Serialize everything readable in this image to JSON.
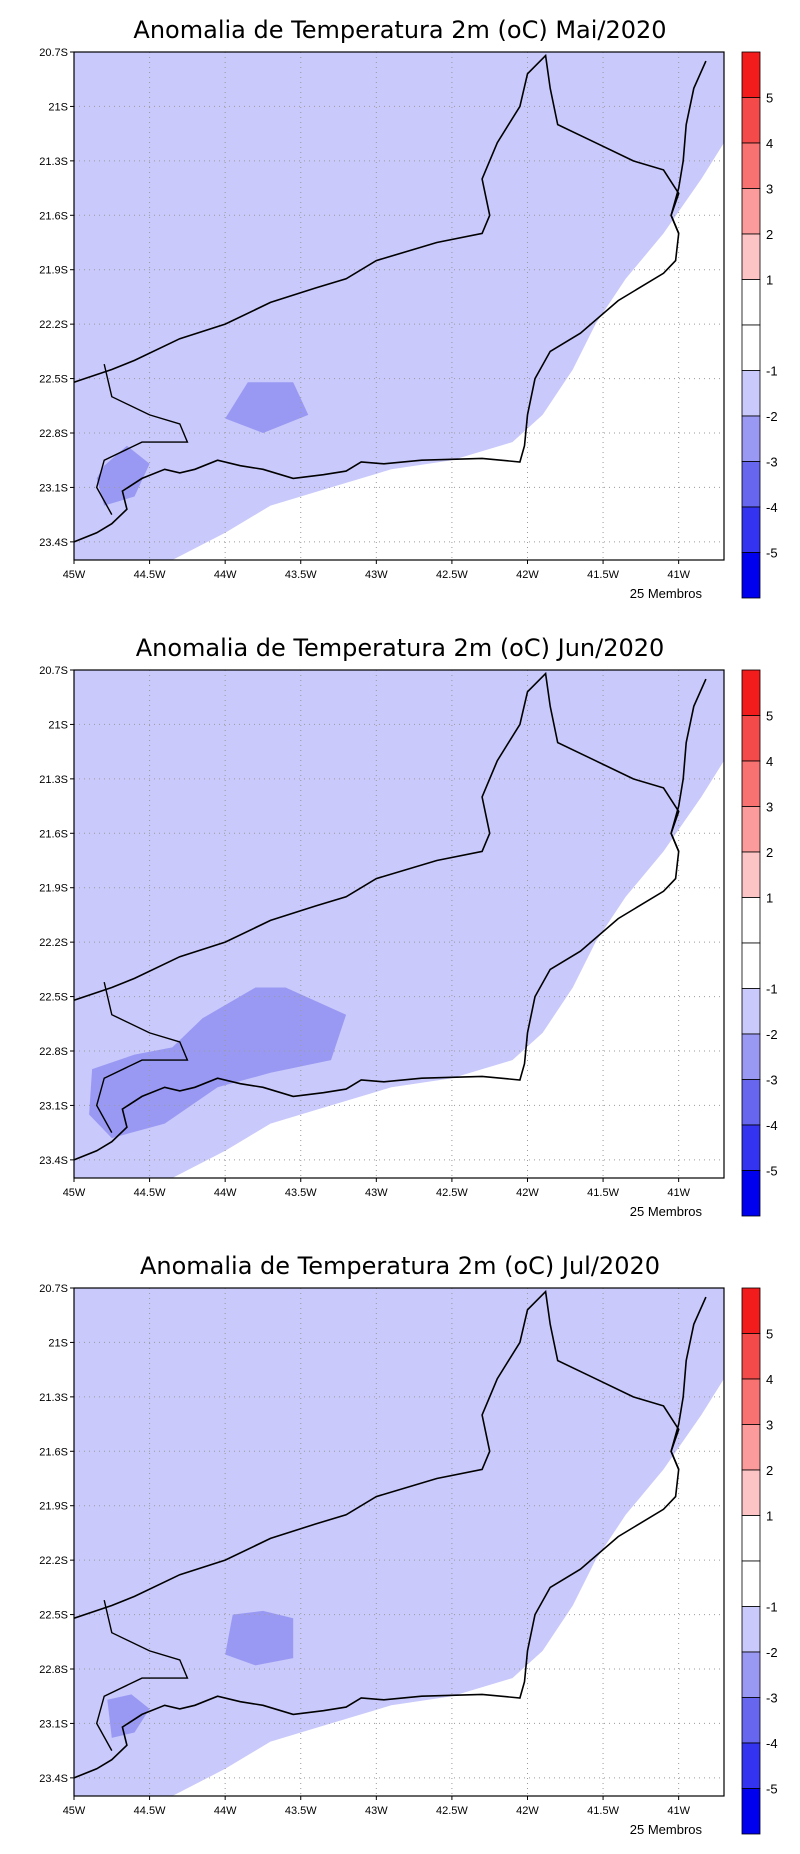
{
  "colors": {
    "neg1": "#ffffff",
    "neg2": "#c9c9fb",
    "neg3": "#9999f4",
    "neg4": "#6666ee",
    "neg5": "#3333f0",
    "neg6": "#0000ee",
    "pos1": "#ffffff",
    "pos2": "#fcc4c4",
    "pos3": "#fb9b9b",
    "pos4": "#f87272",
    "pos5": "#f54a4a",
    "pos6": "#f21c1c"
  },
  "panels": [
    {
      "title": "Anomalia de Temperatura 2m (oC) Mai/2020",
      "members": "25 Membros",
      "dark_patches": [
        {
          "label": "-3",
          "points": [
            [
              -43.85,
              22.52
            ],
            [
              -43.55,
              22.52
            ],
            [
              -43.45,
              22.7
            ],
            [
              -43.75,
              22.8
            ],
            [
              -44.0,
              22.72
            ]
          ]
        },
        {
          "label": "-3",
          "points": [
            [
              -44.8,
              22.98
            ],
            [
              -44.65,
              22.87
            ],
            [
              -44.5,
              22.97
            ],
            [
              -44.6,
              23.15
            ],
            [
              -44.8,
              23.2
            ],
            [
              -44.85,
              23.05
            ]
          ]
        }
      ]
    },
    {
      "title": "Anomalia de Temperatura 2m (oC) Jun/2020",
      "members": "25 Membros",
      "dark_patches": [
        {
          "label": "-3",
          "points": [
            [
              -43.8,
              22.45
            ],
            [
              -43.6,
              22.45
            ],
            [
              -43.2,
              22.6
            ],
            [
              -43.3,
              22.85
            ],
            [
              -43.7,
              22.92
            ],
            [
              -44.05,
              23.0
            ],
            [
              -44.4,
              23.2
            ],
            [
              -44.75,
              23.28
            ],
            [
              -44.9,
              23.15
            ],
            [
              -44.88,
              22.9
            ],
            [
              -44.6,
              22.82
            ],
            [
              -44.35,
              22.78
            ],
            [
              -44.15,
              22.62
            ]
          ]
        }
      ]
    },
    {
      "title": "Anomalia de Temperatura 2m (oC) Jul/2020",
      "members": "25 Membros",
      "dark_patches": [
        {
          "label": "-3",
          "points": [
            [
              -43.95,
              22.5
            ],
            [
              -43.75,
              22.48
            ],
            [
              -43.55,
              22.52
            ],
            [
              -43.55,
              22.74
            ],
            [
              -43.8,
              22.78
            ],
            [
              -44.0,
              22.72
            ]
          ]
        },
        {
          "label": "-3",
          "points": [
            [
              -44.78,
              22.97
            ],
            [
              -44.62,
              22.94
            ],
            [
              -44.5,
              23.02
            ],
            [
              -44.6,
              23.15
            ],
            [
              -44.75,
              23.18
            ]
          ]
        }
      ]
    }
  ],
  "x_ticks": [
    "45W",
    "44.5W",
    "44W",
    "43.5W",
    "43W",
    "42.5W",
    "42W",
    "41.5W",
    "41W"
  ],
  "y_ticks": [
    "20.7S",
    "21S",
    "21.3S",
    "21.6S",
    "21.9S",
    "22.2S",
    "22.5S",
    "22.8S",
    "23.1S",
    "23.4S"
  ],
  "colorbar_labels": [
    "5",
    "4",
    "3",
    "2",
    "1",
    "-1",
    "-2",
    "-3",
    "-4",
    "-5"
  ]
}
